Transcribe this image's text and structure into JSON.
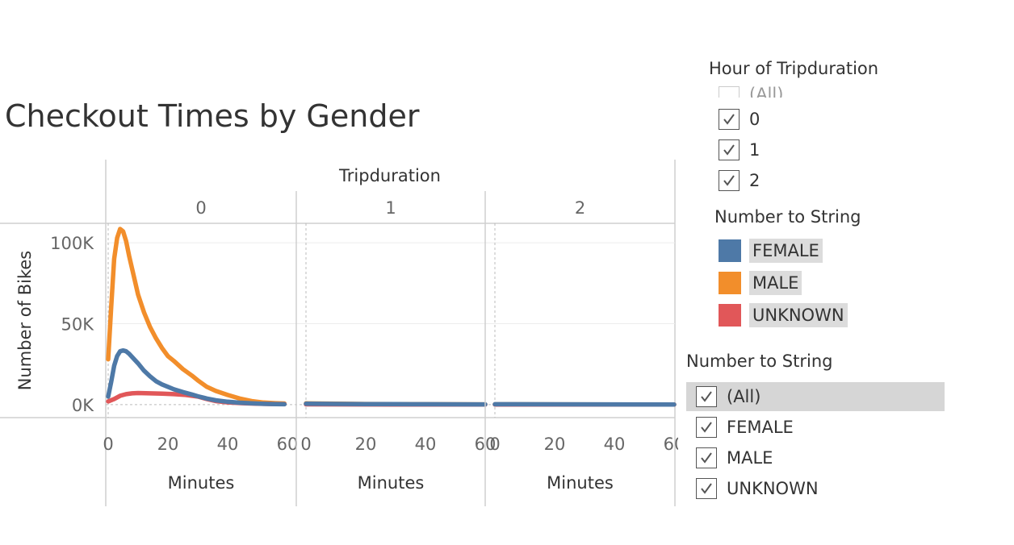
{
  "title": "Checkout Times by Gender",
  "filters": {
    "hour": {
      "title": "Hour of Tripduration",
      "items": [
        {
          "label": "(All)",
          "checked": false
        },
        {
          "label": "0",
          "checked": true
        },
        {
          "label": "1",
          "checked": true
        },
        {
          "label": "2",
          "checked": true
        }
      ]
    },
    "gender": {
      "title": "Number to String",
      "items": [
        {
          "label": "(All)",
          "checked": true
        },
        {
          "label": "FEMALE",
          "checked": true
        },
        {
          "label": "MALE",
          "checked": true
        },
        {
          "label": "UNKNOWN",
          "checked": true
        }
      ]
    }
  },
  "legend": {
    "title": "Number to String",
    "items": [
      {
        "label": "FEMALE",
        "color": "#4e79a7"
      },
      {
        "label": "MALE",
        "color": "#f28e2b"
      },
      {
        "label": "UNKNOWN",
        "color": "#e15759"
      }
    ]
  },
  "chart_data": {
    "type": "line",
    "column_header": "Tripduration",
    "panels": [
      "0",
      "1",
      "2"
    ],
    "xlabel": "Minutes",
    "ylabel": "Number of Bikes",
    "xticks": [
      0,
      20,
      40,
      60
    ],
    "xlim": [
      0,
      60
    ],
    "yticks": [
      0,
      50000,
      100000
    ],
    "ytick_labels": [
      "0K",
      "50K",
      "100K"
    ],
    "ylim": [
      -8000,
      112000
    ],
    "series": [
      {
        "name": "MALE",
        "color": "#f28e2b",
        "panel_points": [
          [
            [
              0,
              28000
            ],
            [
              1,
              60000
            ],
            [
              2,
              90000
            ],
            [
              3,
              103000
            ],
            [
              4,
              108500
            ],
            [
              5,
              107000
            ],
            [
              6,
              101000
            ],
            [
              7,
              92000
            ],
            [
              8,
              84000
            ],
            [
              9,
              76000
            ],
            [
              10,
              68000
            ],
            [
              12,
              57000
            ],
            [
              14,
              48000
            ],
            [
              16,
              41000
            ],
            [
              18,
              35000
            ],
            [
              20,
              30000
            ],
            [
              22,
              27000
            ],
            [
              25,
              22000
            ],
            [
              28,
              18000
            ],
            [
              30,
              15000
            ],
            [
              33,
              11000
            ],
            [
              36,
              8500
            ],
            [
              40,
              6000
            ],
            [
              44,
              3800
            ],
            [
              48,
              2200
            ],
            [
              52,
              1300
            ],
            [
              56,
              900
            ],
            [
              59,
              700
            ]
          ],
          [
            [
              0,
              800
            ],
            [
              10,
              600
            ],
            [
              20,
              400
            ],
            [
              30,
              300
            ],
            [
              40,
              250
            ],
            [
              50,
              200
            ],
            [
              60,
              150
            ]
          ],
          [
            [
              0,
              200
            ],
            [
              20,
              150
            ],
            [
              40,
              120
            ],
            [
              60,
              100
            ]
          ]
        ]
      },
      {
        "name": "UNKNOWN",
        "color": "#e15759",
        "panel_points": [
          [
            [
              0,
              2000
            ],
            [
              2,
              3500
            ],
            [
              4,
              5500
            ],
            [
              6,
              6500
            ],
            [
              8,
              7000
            ],
            [
              10,
              7200
            ],
            [
              14,
              7000
            ],
            [
              18,
              6800
            ],
            [
              22,
              6500
            ],
            [
              26,
              6000
            ],
            [
              30,
              5000
            ],
            [
              33,
              3500
            ],
            [
              36,
              2200
            ],
            [
              40,
              1400
            ],
            [
              45,
              900
            ],
            [
              50,
              600
            ],
            [
              55,
              400
            ],
            [
              59,
              300
            ]
          ],
          [
            [
              0,
              200
            ],
            [
              30,
              100
            ],
            [
              60,
              80
            ]
          ],
          [
            [
              0,
              100
            ],
            [
              60,
              50
            ]
          ]
        ]
      },
      {
        "name": "FEMALE",
        "color": "#4e79a7",
        "panel_points": [
          [
            [
              0,
              5000
            ],
            [
              1,
              14000
            ],
            [
              2,
              24000
            ],
            [
              3,
              30000
            ],
            [
              4,
              33000
            ],
            [
              5,
              33500
            ],
            [
              6,
              33000
            ],
            [
              7,
              31500
            ],
            [
              8,
              29500
            ],
            [
              10,
              25500
            ],
            [
              12,
              21000
            ],
            [
              14,
              17500
            ],
            [
              16,
              14500
            ],
            [
              18,
              12500
            ],
            [
              20,
              11000
            ],
            [
              22,
              9500
            ],
            [
              25,
              7800
            ],
            [
              28,
              6300
            ],
            [
              30,
              5200
            ],
            [
              33,
              3800
            ],
            [
              36,
              2700
            ],
            [
              40,
              1800
            ],
            [
              44,
              1200
            ],
            [
              48,
              800
            ],
            [
              52,
              500
            ],
            [
              56,
              350
            ],
            [
              59,
              250
            ]
          ],
          [
            [
              0,
              600
            ],
            [
              10,
              450
            ],
            [
              20,
              350
            ],
            [
              30,
              300
            ],
            [
              40,
              250
            ],
            [
              50,
              200
            ],
            [
              60,
              150
            ]
          ],
          [
            [
              0,
              250
            ],
            [
              20,
              200
            ],
            [
              40,
              150
            ],
            [
              60,
              100
            ]
          ]
        ]
      }
    ]
  }
}
